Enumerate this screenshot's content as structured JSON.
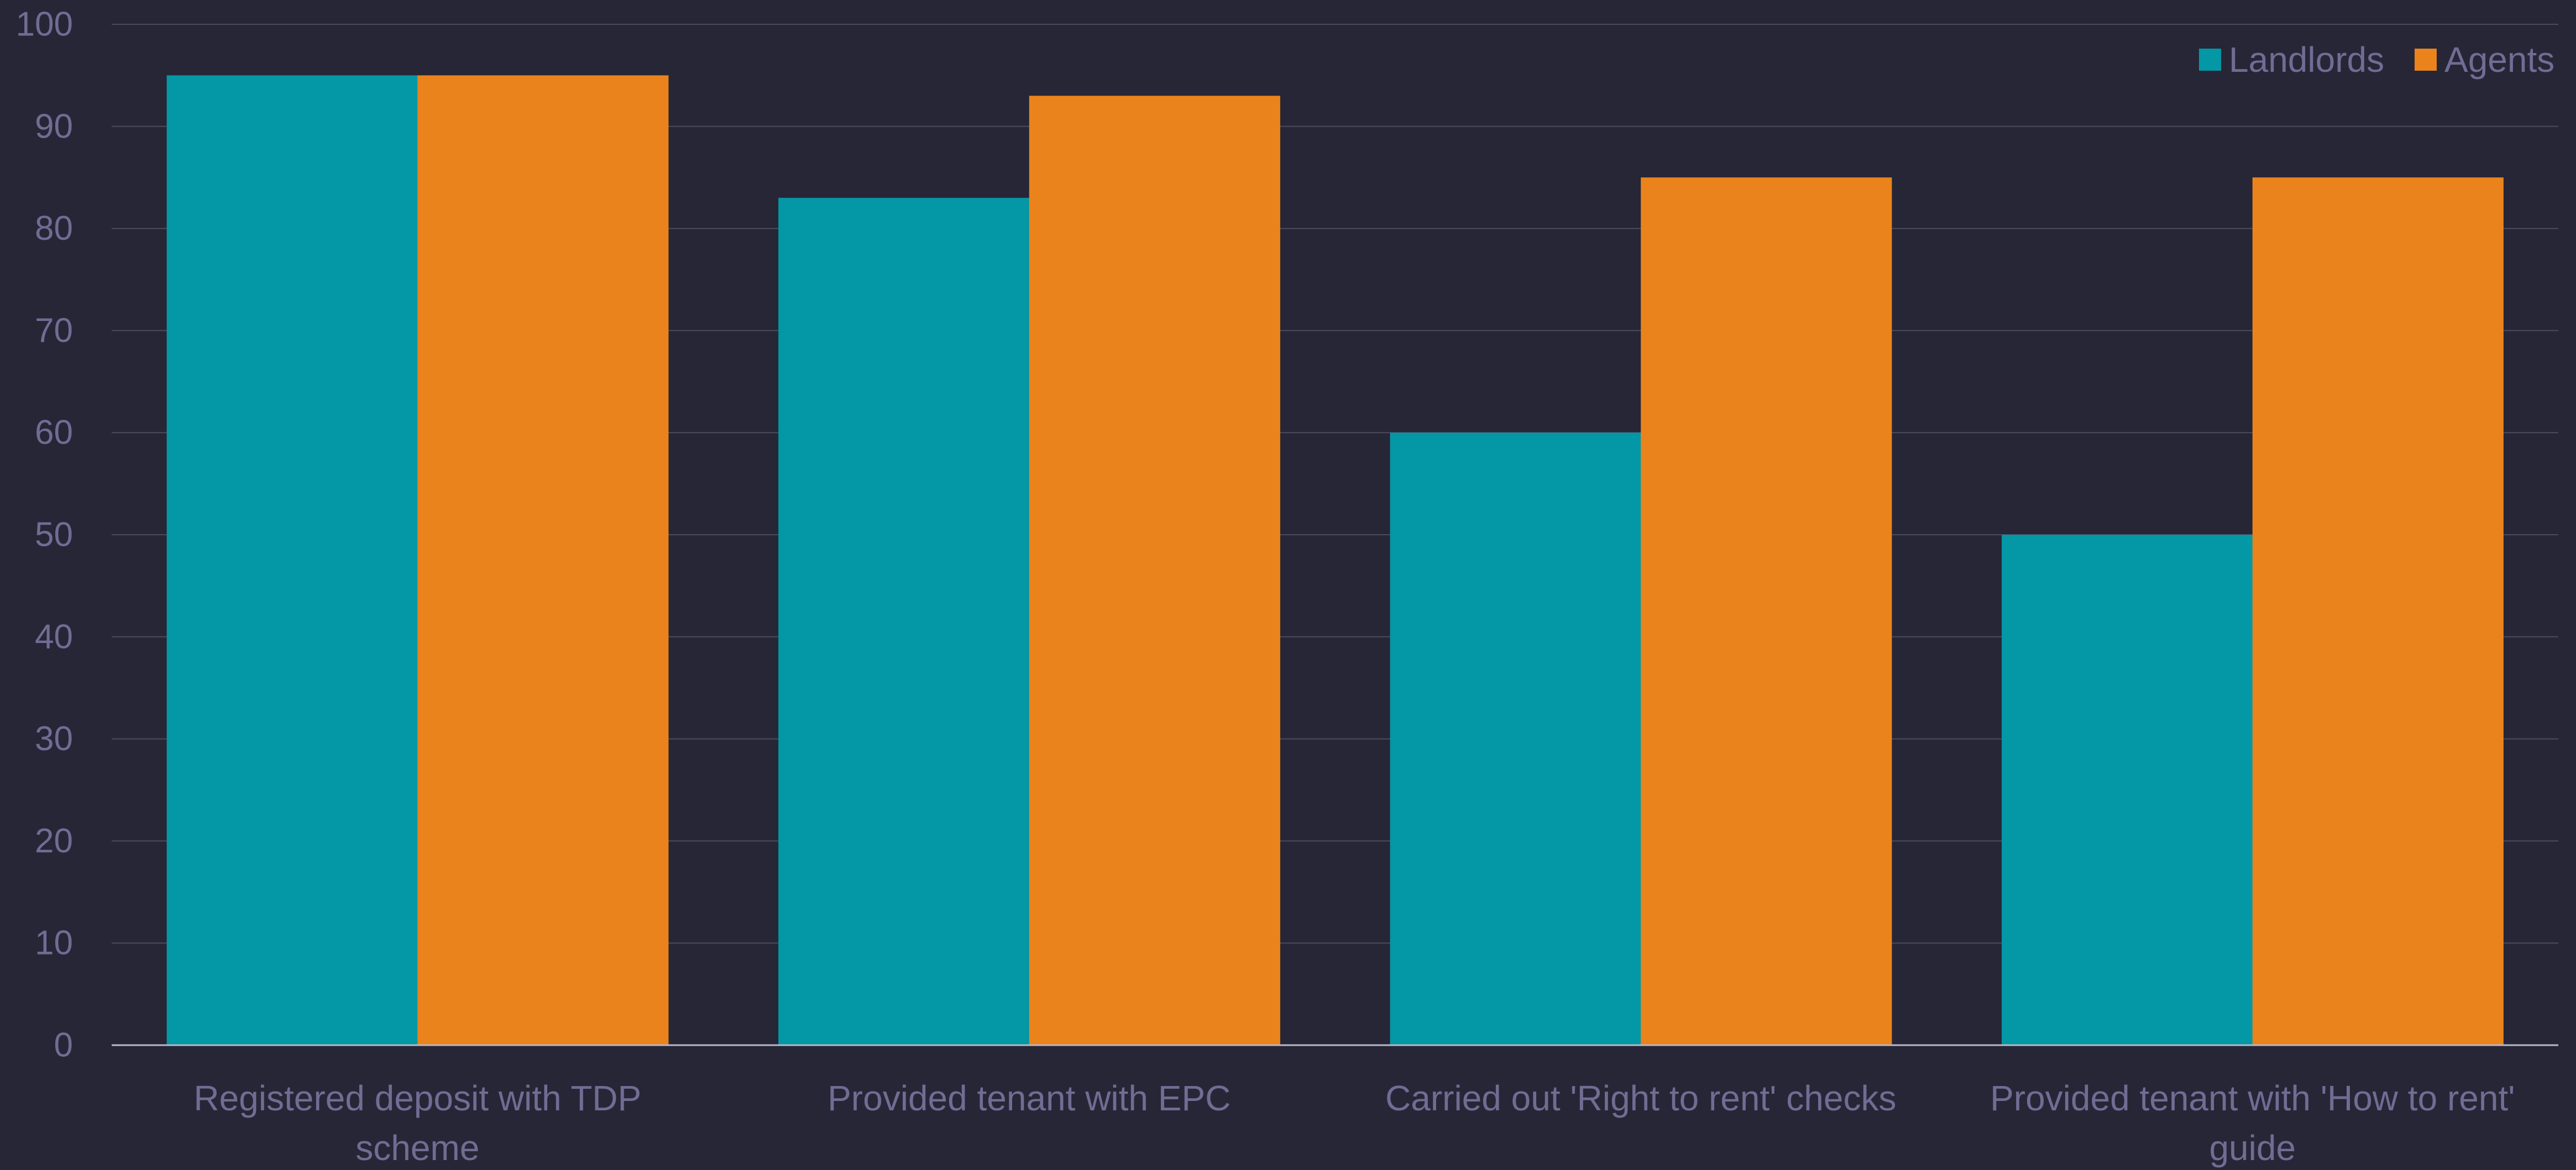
{
  "chart_data": {
    "type": "bar",
    "categories": [
      [
        "Registered deposit with TDP",
        "scheme"
      ],
      [
        "Provided tenant with EPC"
      ],
      [
        "Carried out 'Right to rent' checks"
      ],
      [
        "Provided tenant with 'How to rent'",
        "guide"
      ]
    ],
    "series": [
      {
        "name": "Landlords",
        "values": [
          95,
          83,
          60,
          50
        ],
        "color": "#0497a6"
      },
      {
        "name": "Agents",
        "values": [
          95,
          93,
          85,
          85
        ],
        "color": "#ea831b"
      }
    ],
    "ylim": [
      0,
      100
    ],
    "yticks": [
      0,
      10,
      20,
      30,
      40,
      50,
      60,
      70,
      80,
      90,
      100
    ],
    "grid": true,
    "legend": "top-right",
    "title": "",
    "xlabel": "",
    "ylabel": ""
  },
  "colors": {
    "background": "#262637",
    "gridline": "#4b4b5e",
    "axis": "#b9b9c8",
    "text": "#6f6d93"
  }
}
